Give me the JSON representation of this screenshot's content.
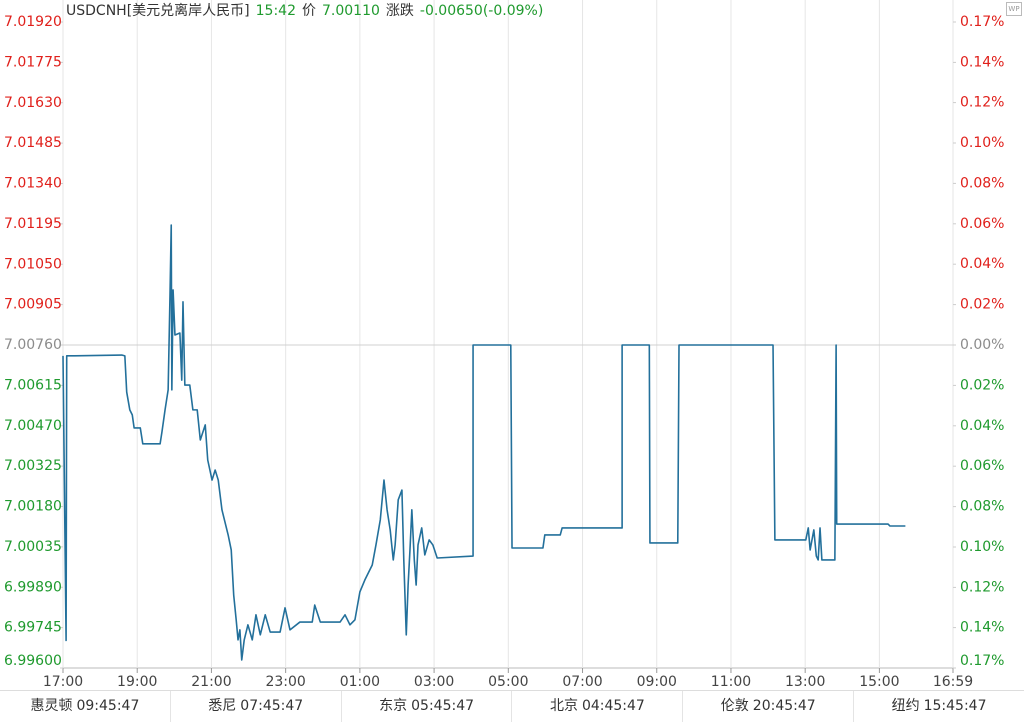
{
  "chart_data": {
    "type": "line",
    "title": "USDCNH[美元兑离岸人民币]",
    "color": "#23709b",
    "up_color": "#e0201b",
    "down_color": "#1f9a2e",
    "flat_color": "#8c8c8c",
    "baseline": 7.0076,
    "grid": "x",
    "xlim": [
      "17:00",
      "16:59"
    ],
    "xticks": [
      "17:00",
      "19:00",
      "21:00",
      "23:00",
      "01:00",
      "03:00",
      "05:00",
      "07:00",
      "09:00",
      "11:00",
      "13:00",
      "15:00",
      "16:59"
    ],
    "ylim": [
      6.996,
      7.0192
    ],
    "yticks": [
      {
        "value": 7.0192,
        "label": "7.01920"
      },
      {
        "value": 7.01775,
        "label": "7.01775"
      },
      {
        "value": 7.0163,
        "label": "7.01630"
      },
      {
        "value": 7.01485,
        "label": "7.01485"
      },
      {
        "value": 7.0134,
        "label": "7.01340"
      },
      {
        "value": 7.01195,
        "label": "7.01195"
      },
      {
        "value": 7.0105,
        "label": "7.01050"
      },
      {
        "value": 7.00905,
        "label": "7.00905"
      },
      {
        "value": 7.0076,
        "label": "7.00760"
      },
      {
        "value": 7.00615,
        "label": "7.00615"
      },
      {
        "value": 7.0047,
        "label": "7.00470"
      },
      {
        "value": 7.00325,
        "label": "7.00325"
      },
      {
        "value": 7.0018,
        "label": "7.00180"
      },
      {
        "value": 7.00035,
        "label": "7.00035"
      },
      {
        "value": 6.9989,
        "label": "6.99890"
      },
      {
        "value": 6.99745,
        "label": "6.99745"
      },
      {
        "value": 6.996,
        "label": "6.99600"
      }
    ],
    "y2lim": [
      -0.1655,
      0.1655
    ],
    "y2ticks": [
      {
        "value": 0.1655,
        "label": "0.17%"
      },
      {
        "value": 0.1448,
        "label": "0.14%"
      },
      {
        "value": 0.1242,
        "label": "0.12%"
      },
      {
        "value": 0.1035,
        "label": "0.10%"
      },
      {
        "value": 0.0828,
        "label": "0.08%"
      },
      {
        "value": 0.0621,
        "label": "0.06%"
      },
      {
        "value": 0.0414,
        "label": "0.04%"
      },
      {
        "value": 0.0207,
        "label": "0.02%"
      },
      {
        "value": 0,
        "label": "0.00%"
      },
      {
        "value": -0.0207,
        "label": "0.02%"
      },
      {
        "value": -0.0414,
        "label": "0.04%"
      },
      {
        "value": -0.0621,
        "label": "0.06%"
      },
      {
        "value": -0.0828,
        "label": "0.08%"
      },
      {
        "value": -0.1035,
        "label": "0.10%"
      },
      {
        "value": -0.1242,
        "label": "0.12%"
      },
      {
        "value": -0.1448,
        "label": "0.14%"
      },
      {
        "value": -0.1655,
        "label": "0.17%"
      }
    ],
    "x": [
      "17:00",
      "17:05",
      "17:06",
      "17:19",
      "18:35",
      "18:40",
      "18:43",
      "18:48",
      "18:52",
      "18:55",
      "19:05",
      "19:09",
      "19:37",
      "19:40",
      "19:45",
      "19:50",
      "19:53",
      "19:55",
      "19:56",
      "19:58",
      "20:01",
      "20:09",
      "20:12",
      "20:14",
      "20:17",
      "20:25",
      "20:30",
      "20:37",
      "20:42",
      "20:50",
      "20:54",
      "21:01",
      "21:06",
      "21:11",
      "21:17",
      "21:27",
      "21:32",
      "21:36",
      "21:40",
      "21:43",
      "21:46",
      "21:49",
      "21:53",
      "21:59",
      "22:06",
      "22:12",
      "22:19",
      "22:27",
      "22:35",
      "22:51",
      "22:59",
      "23:07",
      "23:23",
      "23:43",
      "23:47",
      "23:56",
      "00:28",
      "00:36",
      "00:44",
      "00:52",
      "01:00",
      "01:08",
      "01:20",
      "01:26",
      "01:33",
      "01:39",
      "01:44",
      "01:49",
      "01:54",
      "01:57",
      "02:02",
      "02:08",
      "02:11",
      "02:15",
      "02:18",
      "02:21",
      "02:24",
      "02:28",
      "02:31",
      "02:34",
      "02:40",
      "02:45",
      "02:52",
      "02:58",
      "03:05",
      "04:03",
      "04:03",
      "05:04",
      "05:06",
      "05:56",
      "05:59",
      "06:24",
      "06:27",
      "08:04",
      "08:04",
      "08:48",
      "08:49",
      "09:34",
      "09:36",
      "12:08",
      "12:11",
      "13:01",
      "13:05",
      "13:08",
      "13:14",
      "13:18",
      "13:21",
      "13:24",
      "13:27",
      "13:48",
      "13:50",
      "13:51",
      "15:14",
      "15:17",
      "15:42"
    ],
    "values": [
      7.00721,
      6.99699,
      7.00721,
      7.00721,
      7.00724,
      7.00721,
      7.00591,
      7.00527,
      7.00509,
      7.00462,
      7.00462,
      7.00405,
      7.00405,
      7.00448,
      7.00527,
      7.00599,
      7.0094,
      7.01191,
      7.00599,
      7.00958,
      7.00796,
      7.00803,
      7.00634,
      7.00915,
      7.00616,
      7.00616,
      7.00527,
      7.00527,
      7.00419,
      7.00473,
      7.00347,
      7.00275,
      7.00311,
      7.00275,
      7.00168,
      7.00078,
      7.00024,
      6.99862,
      6.99773,
      6.99701,
      6.99737,
      6.99629,
      6.99701,
      6.99755,
      6.99701,
      6.99791,
      6.99719,
      6.99791,
      6.99729,
      6.99729,
      6.99816,
      6.99737,
      6.99765,
      6.99765,
      6.99826,
      6.99765,
      6.99765,
      6.99791,
      6.99755,
      6.99773,
      6.99873,
      6.99916,
      6.9997,
      7.00042,
      7.00132,
      7.00275,
      7.00168,
      7.00096,
      6.99988,
      7.00042,
      7.00204,
      7.00239,
      6.99988,
      6.99719,
      6.99898,
      7.00024,
      7.00168,
      6.99988,
      6.99898,
      7.00042,
      7.00103,
      7.00006,
      7.0006,
      7.00042,
      6.99995,
      7.00002,
      7.0076,
      7.0076,
      7.00031,
      7.00031,
      7.00078,
      7.00078,
      7.00103,
      7.00103,
      7.0076,
      7.0076,
      7.00049,
      7.00049,
      7.0076,
      7.0076,
      7.0006,
      7.0006,
      7.00103,
      7.00024,
      7.00096,
      7.00002,
      6.99988,
      7.00103,
      6.99988,
      6.99988,
      7.0076,
      7.00117,
      7.00117,
      7.0011,
      7.0011
    ]
  },
  "quote": {
    "time": "15:42",
    "price_label": "价",
    "price": "7.00110",
    "change_label": "涨跌",
    "change": "-0.00650(-0.09%)"
  },
  "clocks": [
    {
      "city": "惠灵顿",
      "time": "09:45:47"
    },
    {
      "city": "悉尼",
      "time": "07:45:47"
    },
    {
      "city": "东京",
      "time": "05:45:47"
    },
    {
      "city": "北京",
      "time": "04:45:47"
    },
    {
      "city": "伦敦",
      "time": "20:45:47"
    },
    {
      "city": "纽约",
      "time": "15:45:47"
    }
  ]
}
